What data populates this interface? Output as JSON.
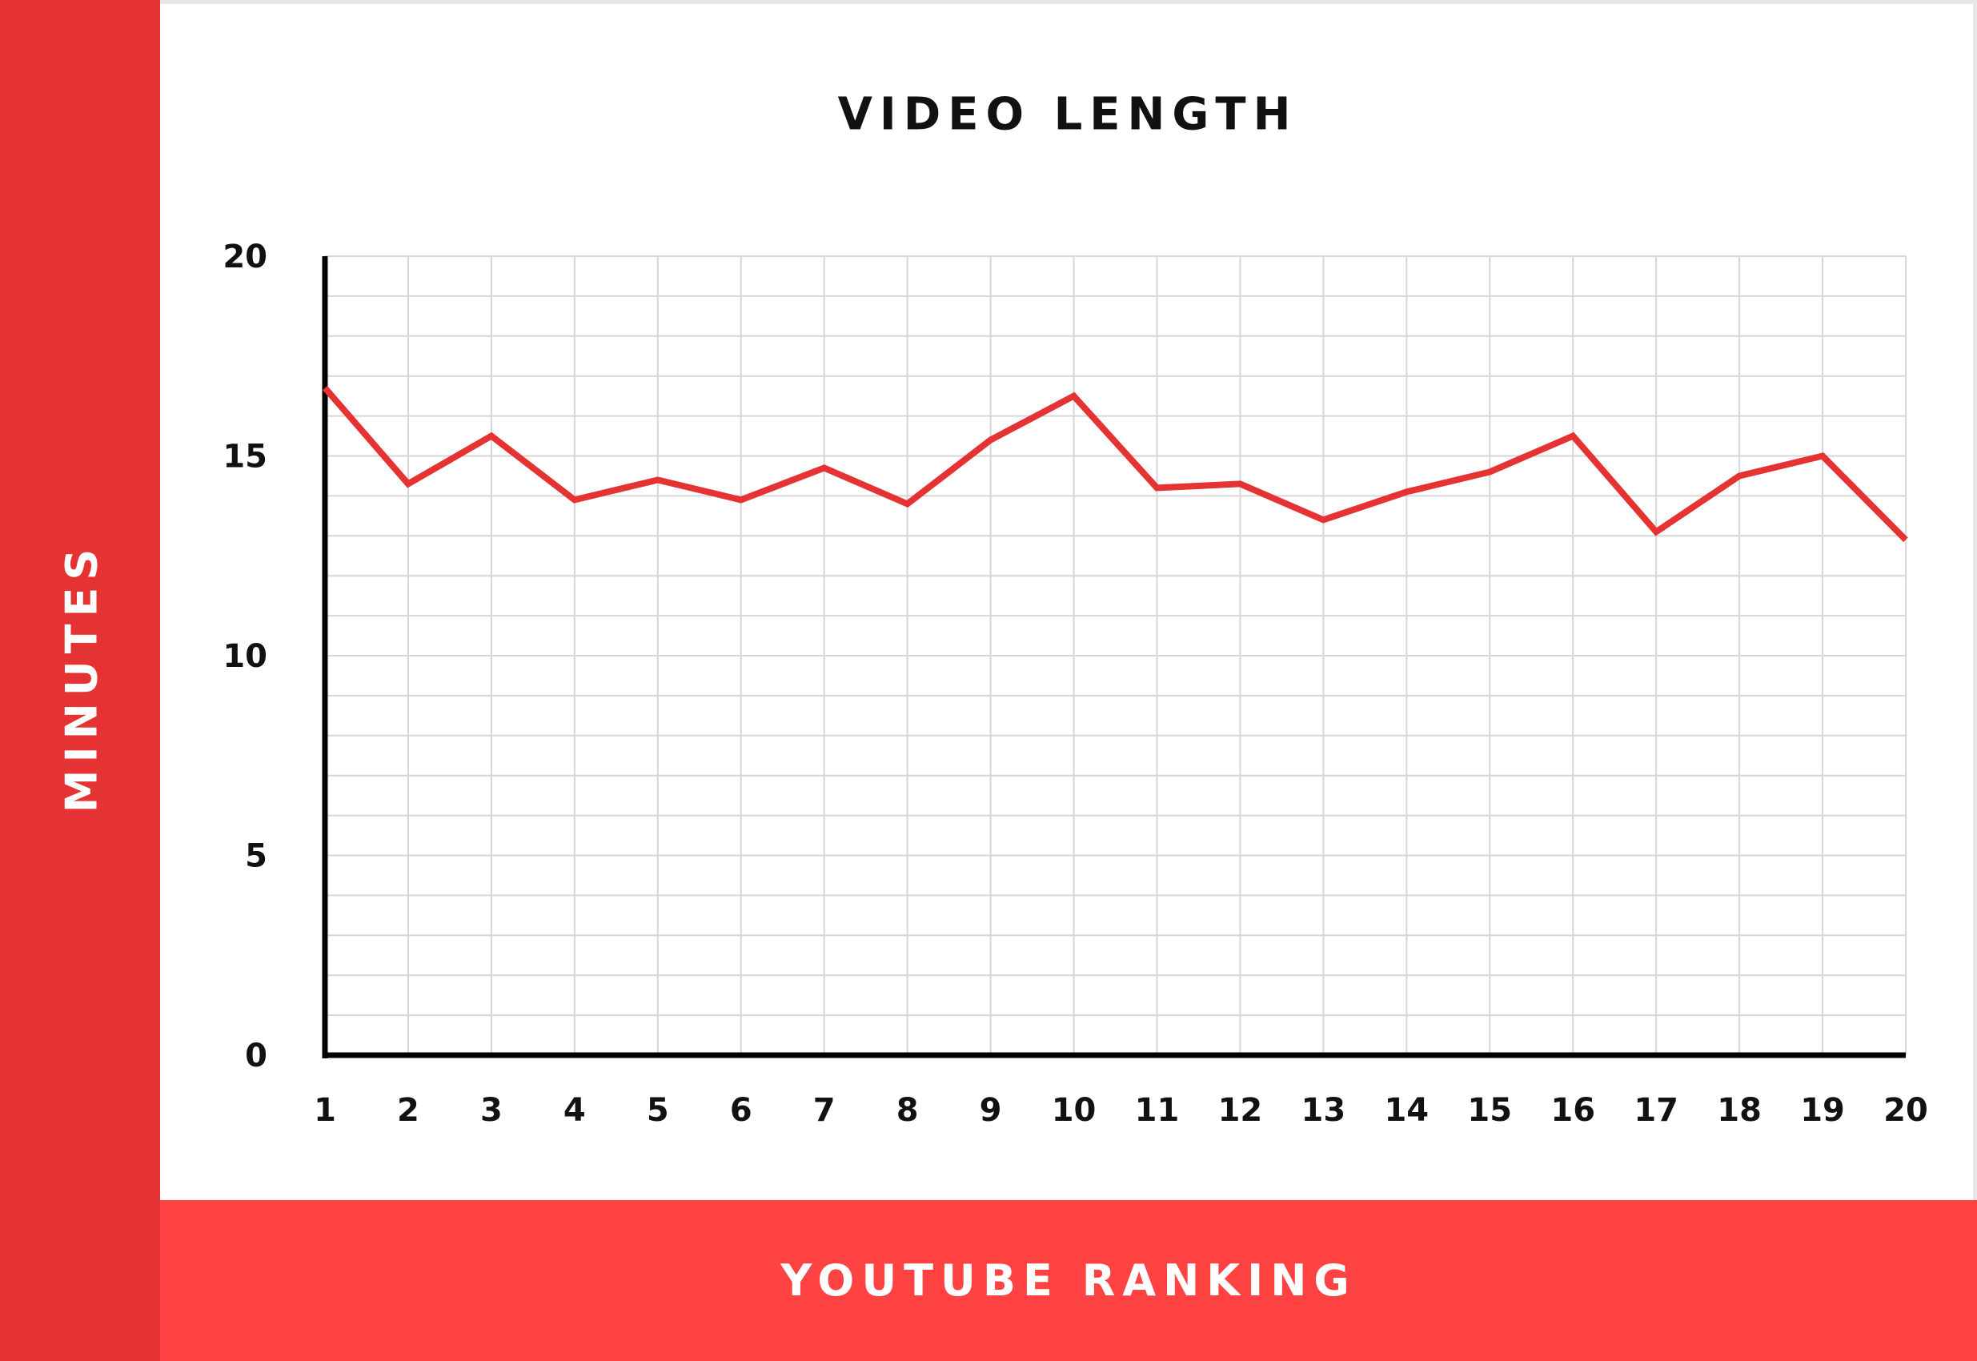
{
  "chart_data": {
    "type": "line",
    "title": "VIDEO LENGTH",
    "xlabel": "YOUTUBE RANKING",
    "ylabel": "MINUTES",
    "x": [
      1,
      2,
      3,
      4,
      5,
      6,
      7,
      8,
      9,
      10,
      11,
      12,
      13,
      14,
      15,
      16,
      17,
      18,
      19,
      20
    ],
    "x_tick_labels": [
      "1",
      "2",
      "3",
      "4",
      "5",
      "6",
      "7",
      "8",
      "9",
      "10",
      "11",
      "12",
      "13",
      "14",
      "15",
      "16",
      "17",
      "18",
      "19",
      "20"
    ],
    "y_tick_labels": [
      "0",
      "5",
      "10",
      "15",
      "20"
    ],
    "y_ticks": [
      0,
      5,
      10,
      15,
      20
    ],
    "ylim": [
      0,
      20
    ],
    "xlim": [
      1,
      20
    ],
    "grid": true,
    "series": [
      {
        "values": [
          16.7,
          14.3,
          15.5,
          13.9,
          14.4,
          13.9,
          14.7,
          13.8,
          15.4,
          16.5,
          14.2,
          14.3,
          13.4,
          14.1,
          14.6,
          15.5,
          13.1,
          14.5,
          15.0,
          12.9
        ],
        "color": "#e53232"
      }
    ]
  },
  "colors": {
    "accent": "#e53232",
    "band": "#ff4242"
  }
}
